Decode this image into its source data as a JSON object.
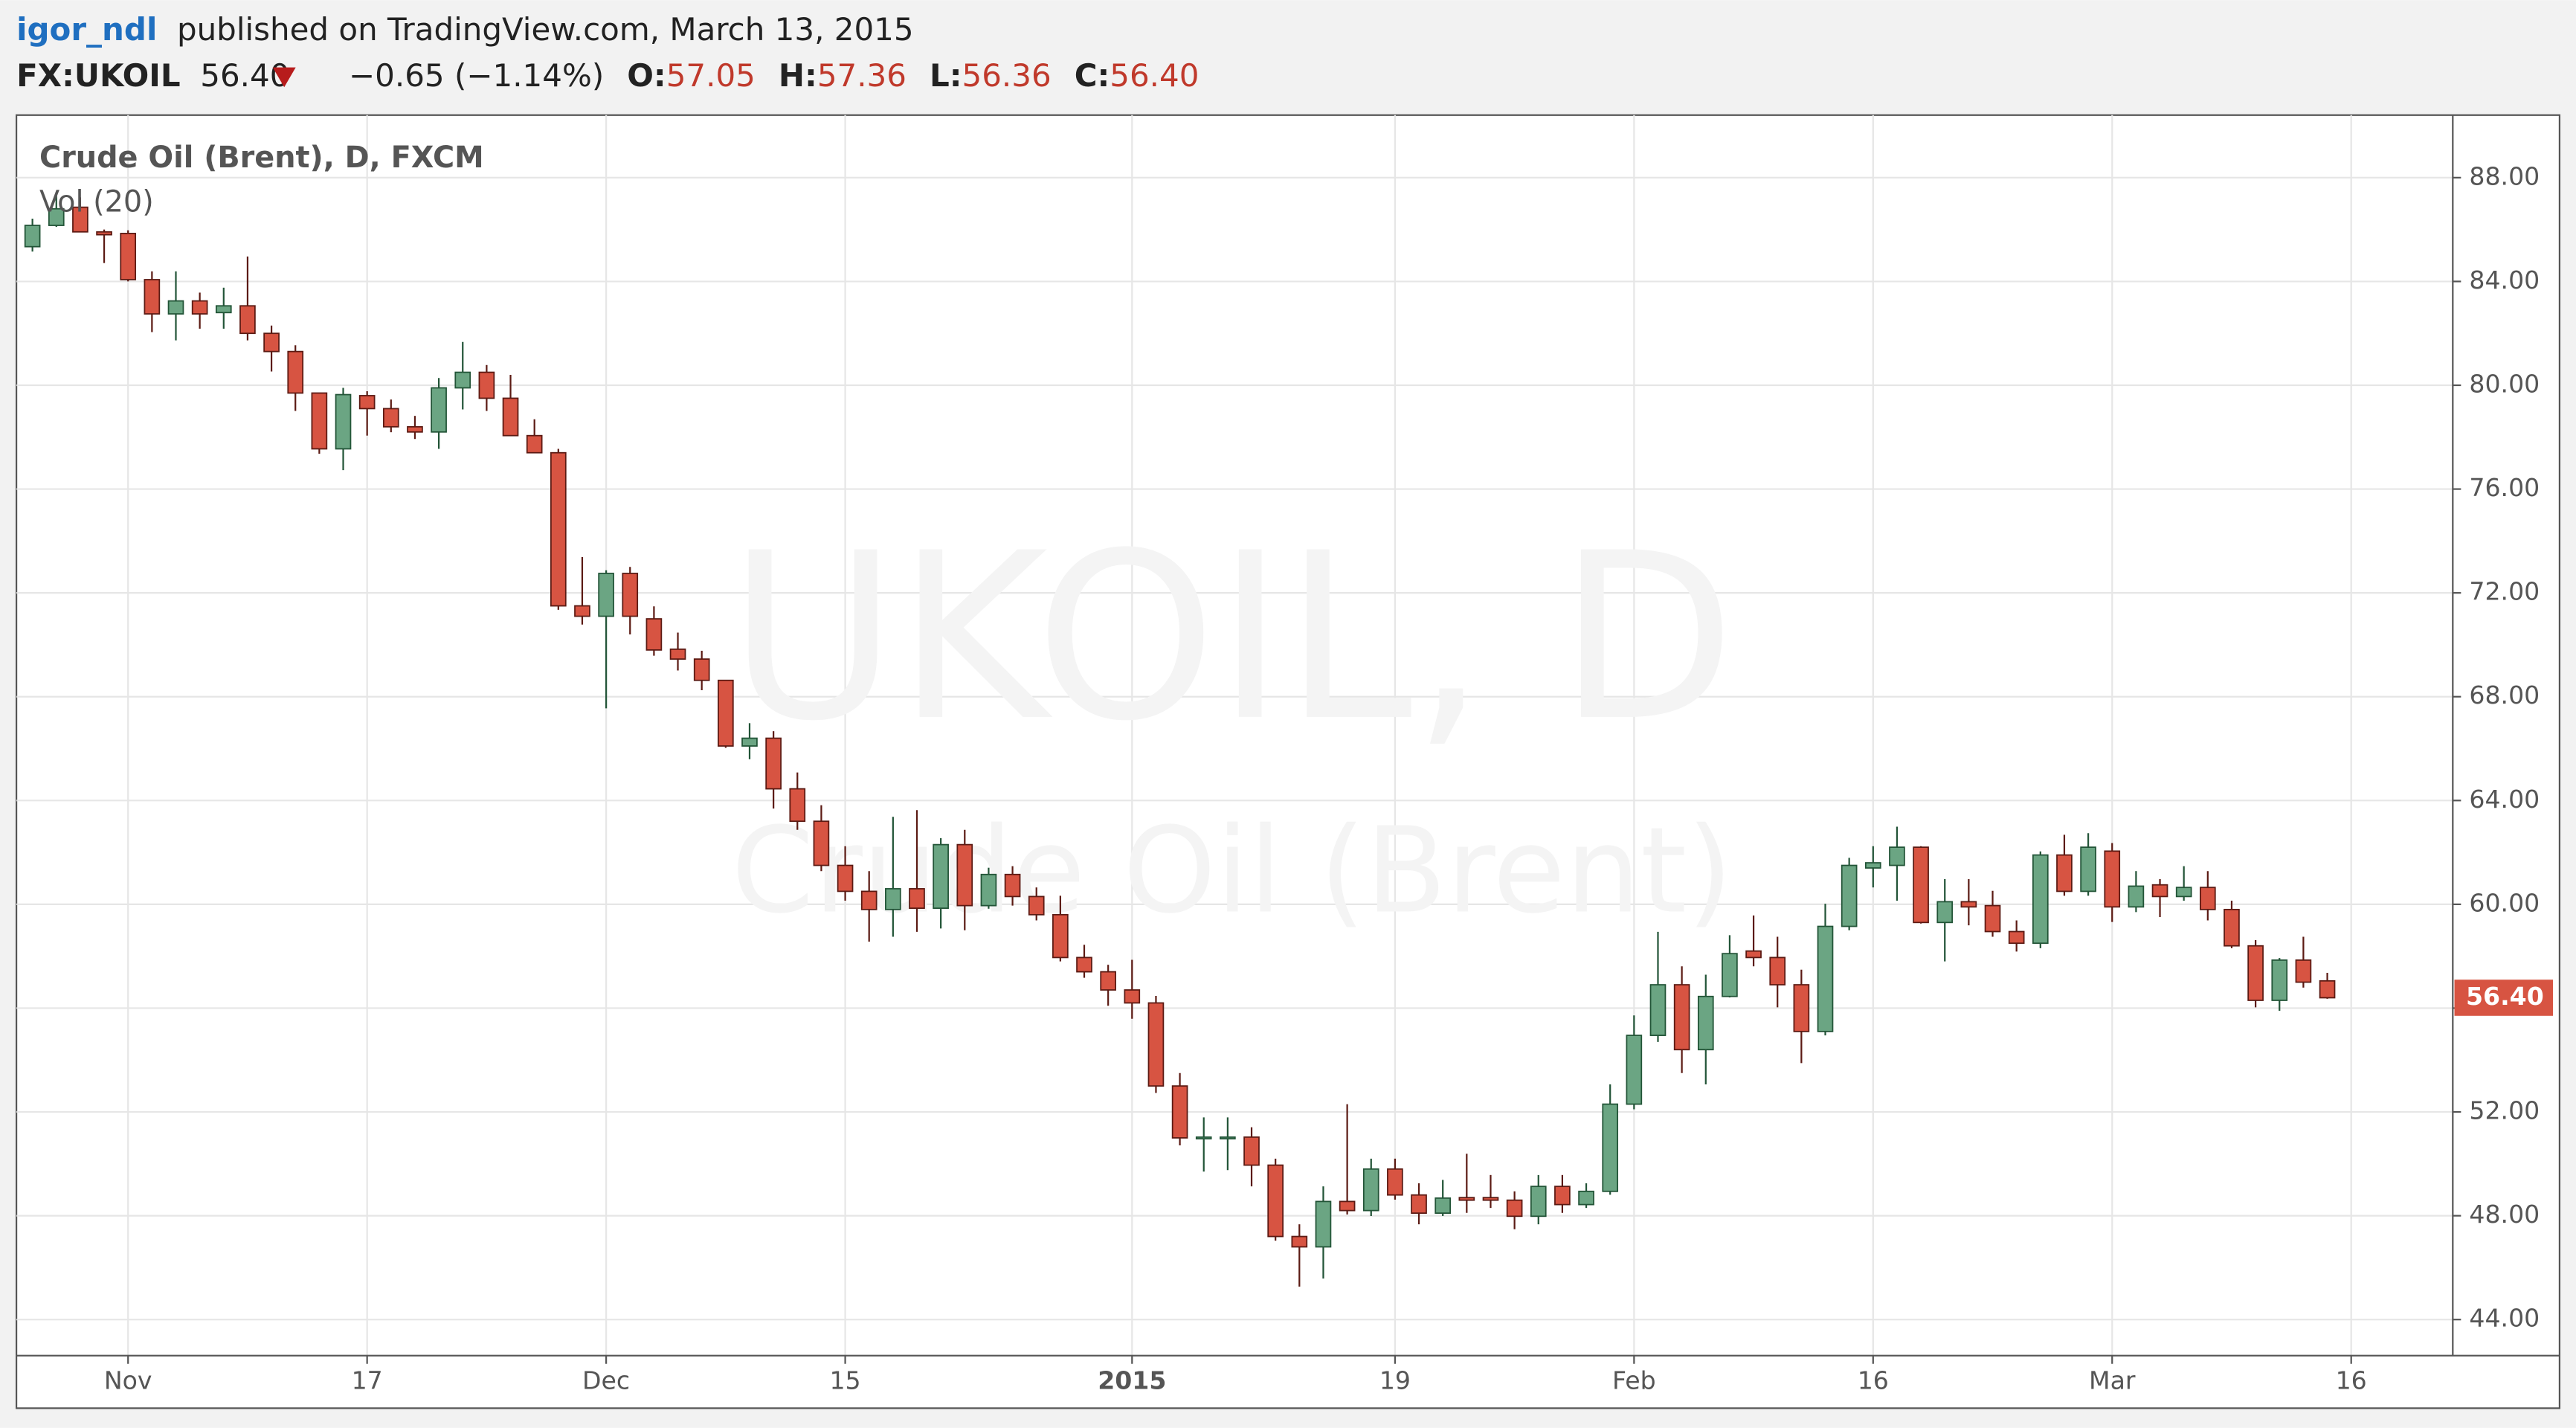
{
  "header": {
    "author": "igor_ndl",
    "published": "published on TradingView.com, March 13, 2015",
    "symbol": "FX:UKOIL",
    "last": "56.40",
    "change": "−0.65 (−1.14%)",
    "o_label": "O:",
    "open": "57.05",
    "h_label": "H:",
    "high": "57.36",
    "l_label": "L:",
    "low": "56.36",
    "c_label": "C:",
    "close": "56.40"
  },
  "chart_data": {
    "type": "candlestick",
    "title": "Crude Oil (Brent), D, FXCM",
    "indicator": "Vol (20)",
    "watermark": "UKOIL, D",
    "watermark_sub": "Crude Oil (Brent)",
    "up_color": "#6ba583",
    "down_color": "#d75442",
    "grid": true,
    "x": [
      0,
      1,
      2,
      3,
      4,
      5,
      6,
      7,
      8,
      9,
      10,
      11,
      12,
      13,
      14,
      15,
      16,
      17,
      18,
      19,
      20,
      21,
      22,
      23,
      24,
      25,
      26,
      27,
      28,
      29,
      30,
      31,
      32,
      33,
      34,
      35,
      36,
      37,
      38,
      39,
      40,
      41,
      42,
      43,
      44,
      45,
      46,
      47,
      48,
      49,
      50,
      51,
      52,
      53,
      54,
      55,
      56,
      57,
      58,
      59,
      60,
      61,
      62,
      63,
      64,
      65,
      66,
      67,
      68,
      69,
      70,
      71,
      72,
      73,
      74,
      75,
      76,
      77,
      78,
      79,
      80,
      81,
      82,
      83,
      84,
      85,
      86,
      87,
      88,
      89,
      90,
      91,
      92,
      93,
      94,
      95,
      96
    ],
    "open": [
      85.34,
      86.16,
      86.86,
      85.91,
      85.85,
      84.07,
      82.75,
      83.25,
      82.8,
      83.06,
      82.0,
      81.3,
      79.7,
      77.55,
      79.6,
      79.1,
      78.4,
      78.2,
      79.9,
      80.5,
      79.5,
      78.06,
      77.4,
      71.5,
      71.1,
      72.75,
      71.0,
      69.83,
      69.45,
      68.63,
      66.1,
      66.4,
      64.45,
      63.2,
      61.5,
      60.5,
      59.8,
      60.6,
      59.85,
      62.3,
      59.95,
      61.15,
      60.3,
      59.6,
      57.95,
      57.4,
      56.7,
      56.2,
      53.0,
      51.03,
      51.03,
      51.03,
      49.95,
      47.2,
      46.8,
      48.55,
      48.2,
      49.8,
      48.8,
      48.1,
      48.7,
      48.7,
      48.6,
      47.98,
      49.13,
      48.43,
      48.94,
      52.3,
      54.95,
      56.9,
      54.4,
      56.45,
      58.2,
      57.95,
      56.9,
      55.1,
      59.15,
      61.4,
      61.5,
      62.2,
      59.3,
      60.1,
      59.95,
      58.95,
      58.5,
      61.9,
      60.5,
      62.05,
      59.9,
      60.75,
      60.3,
      60.65,
      59.8,
      58.4,
      56.3,
      57.85,
      57.05
    ],
    "high": [
      86.42,
      87.37,
      87.24,
      86.0,
      85.97,
      84.39,
      84.39,
      83.57,
      83.76,
      84.96,
      82.3,
      81.54,
      79.71,
      79.9,
      79.77,
      79.45,
      78.82,
      80.28,
      81.67,
      80.78,
      80.4,
      78.69,
      77.55,
      73.38,
      72.87,
      73.0,
      71.48,
      70.47,
      69.77,
      68.63,
      66.98,
      66.67,
      65.08,
      63.82,
      62.24,
      61.28,
      63.37,
      63.63,
      62.55,
      62.87,
      61.41,
      61.47,
      60.65,
      60.33,
      58.44,
      57.67,
      57.86,
      56.47,
      53.5,
      51.79,
      51.79,
      51.41,
      50.2,
      47.67,
      49.13,
      52.3,
      50.2,
      50.2,
      49.25,
      49.38,
      50.39,
      49.57,
      48.94,
      49.57,
      49.57,
      49.25,
      53.06,
      55.72,
      58.94,
      57.61,
      57.29,
      58.81,
      59.57,
      58.75,
      57.48,
      60.02,
      61.79,
      62.24,
      62.99,
      62.24,
      60.97,
      60.97,
      60.52,
      59.38,
      62.04,
      62.68,
      62.74,
      62.36,
      61.28,
      60.97,
      61.47,
      61.28,
      60.14,
      58.62,
      57.93,
      58.75,
      57.36
    ],
    "low": [
      85.15,
      86.1,
      85.91,
      84.71,
      84.0,
      82.05,
      81.73,
      82.18,
      82.18,
      81.73,
      80.53,
      79.01,
      77.36,
      76.73,
      78.06,
      78.19,
      77.93,
      77.55,
      79.07,
      79.01,
      78.06,
      77.43,
      71.35,
      70.78,
      67.55,
      70.4,
      69.58,
      69.01,
      68.25,
      66.03,
      65.59,
      63.69,
      62.87,
      61.28,
      60.14,
      58.56,
      58.75,
      58.94,
      59.07,
      59.0,
      59.83,
      59.95,
      59.38,
      57.8,
      57.17,
      56.09,
      55.59,
      52.73,
      50.71,
      49.7,
      49.76,
      49.13,
      47.04,
      45.27,
      45.58,
      48.05,
      47.99,
      48.62,
      47.67,
      47.99,
      48.11,
      48.3,
      47.48,
      47.67,
      48.11,
      48.3,
      48.81,
      52.1,
      54.7,
      53.5,
      53.06,
      56.41,
      57.61,
      56.03,
      53.88,
      54.95,
      59.0,
      60.65,
      60.14,
      59.26,
      57.8,
      59.19,
      58.75,
      58.18,
      58.31,
      60.33,
      60.33,
      59.32,
      59.7,
      59.51,
      60.14,
      59.38,
      58.31,
      56.03,
      55.9,
      56.79,
      56.36
    ],
    "close": [
      86.16,
      86.8,
      85.91,
      85.8,
      84.07,
      82.75,
      83.25,
      82.75,
      83.06,
      82.0,
      81.3,
      79.7,
      77.55,
      79.64,
      79.1,
      78.4,
      78.2,
      79.9,
      80.5,
      79.5,
      78.06,
      77.4,
      71.5,
      71.1,
      72.75,
      71.1,
      69.8,
      69.45,
      68.63,
      66.1,
      66.4,
      64.45,
      63.2,
      61.5,
      60.5,
      59.8,
      60.6,
      59.85,
      62.3,
      59.95,
      61.15,
      60.3,
      59.6,
      57.95,
      57.4,
      56.7,
      56.2,
      53.0,
      51.0,
      51.03,
      51.03,
      49.95,
      47.2,
      46.8,
      48.55,
      48.2,
      49.8,
      48.8,
      48.1,
      48.68,
      48.6,
      48.6,
      47.98,
      49.13,
      48.43,
      48.94,
      52.3,
      54.95,
      56.9,
      54.4,
      56.45,
      58.1,
      57.95,
      56.9,
      55.1,
      59.15,
      61.5,
      61.6,
      62.2,
      59.3,
      60.1,
      59.9,
      58.95,
      58.5,
      61.9,
      60.5,
      62.2,
      59.9,
      60.7,
      60.3,
      60.65,
      59.8,
      58.4,
      56.3,
      57.85,
      57.0,
      56.4
    ],
    "xlim": [
      -0.67,
      101.25
    ],
    "ylim": [
      42.61,
      90.41
    ],
    "xticks": [
      {
        "value": 4,
        "label": "Nov"
      },
      {
        "value": 14,
        "label": "17"
      },
      {
        "value": 24,
        "label": "Dec"
      },
      {
        "value": 34,
        "label": "15"
      },
      {
        "value": 46,
        "label": "2015"
      },
      {
        "value": 57,
        "label": "19"
      },
      {
        "value": 67,
        "label": "Feb"
      },
      {
        "value": 77,
        "label": "16"
      },
      {
        "value": 87,
        "label": "Mar"
      },
      {
        "value": 97,
        "label": "16"
      }
    ],
    "yticks": [
      {
        "value": 44,
        "label": "44.00"
      },
      {
        "value": 48,
        "label": "48.00"
      },
      {
        "value": 52,
        "label": "52.00"
      },
      {
        "value": 56,
        "label": "56.00"
      },
      {
        "value": 60,
        "label": "60.00"
      },
      {
        "value": 64,
        "label": "64.00"
      },
      {
        "value": 68,
        "label": "68.00"
      },
      {
        "value": 72,
        "label": "72.00"
      },
      {
        "value": 76,
        "label": "76.00"
      },
      {
        "value": 80,
        "label": "80.00"
      },
      {
        "value": 84,
        "label": "84.00"
      },
      {
        "value": 88,
        "label": "88.00"
      }
    ]
  }
}
